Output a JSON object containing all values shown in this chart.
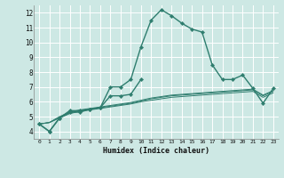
{
  "xlabel": "Humidex (Indice chaleur)",
  "bg_color": "#cde8e4",
  "grid_color": "#ffffff",
  "line_color": "#2e7d6e",
  "xlim": [
    -0.5,
    23.5
  ],
  "ylim": [
    3.5,
    12.5
  ],
  "yticks": [
    4,
    5,
    6,
    7,
    8,
    9,
    10,
    11,
    12
  ],
  "xticks": [
    0,
    1,
    2,
    3,
    4,
    5,
    6,
    7,
    8,
    9,
    10,
    11,
    12,
    13,
    14,
    15,
    16,
    17,
    18,
    19,
    20,
    21,
    22,
    23
  ],
  "series_main": [
    4.5,
    4.0,
    4.9,
    5.4,
    5.4,
    5.5,
    5.6,
    7.0,
    7.0,
    7.5,
    9.7,
    11.5,
    12.2,
    11.8,
    11.3,
    10.9,
    10.7,
    8.5,
    7.5,
    7.5,
    7.8,
    6.9,
    5.9,
    6.9
  ],
  "series_short": [
    4.5,
    4.0,
    4.9,
    5.3,
    5.3,
    5.5,
    5.6,
    6.4,
    6.4,
    6.5,
    7.5,
    null,
    null,
    null,
    null,
    null,
    null,
    null,
    null,
    null,
    null,
    null,
    null,
    null
  ],
  "series_flat1": [
    4.5,
    4.6,
    4.9,
    5.2,
    5.35,
    5.45,
    5.55,
    5.65,
    5.75,
    5.85,
    6.0,
    6.1,
    6.2,
    6.3,
    6.35,
    6.4,
    6.45,
    6.5,
    6.55,
    6.6,
    6.65,
    6.7,
    6.3,
    6.6
  ],
  "series_flat2": [
    4.5,
    4.6,
    4.95,
    5.25,
    5.4,
    5.5,
    5.6,
    5.7,
    5.8,
    5.9,
    6.05,
    6.2,
    6.3,
    6.4,
    6.45,
    6.5,
    6.55,
    6.6,
    6.65,
    6.7,
    6.75,
    6.8,
    6.4,
    6.7
  ],
  "series_flat3": [
    4.5,
    4.6,
    5.0,
    5.3,
    5.45,
    5.55,
    5.65,
    5.75,
    5.85,
    5.95,
    6.1,
    6.25,
    6.35,
    6.45,
    6.5,
    6.55,
    6.6,
    6.65,
    6.7,
    6.75,
    6.8,
    6.85,
    6.45,
    6.75
  ]
}
